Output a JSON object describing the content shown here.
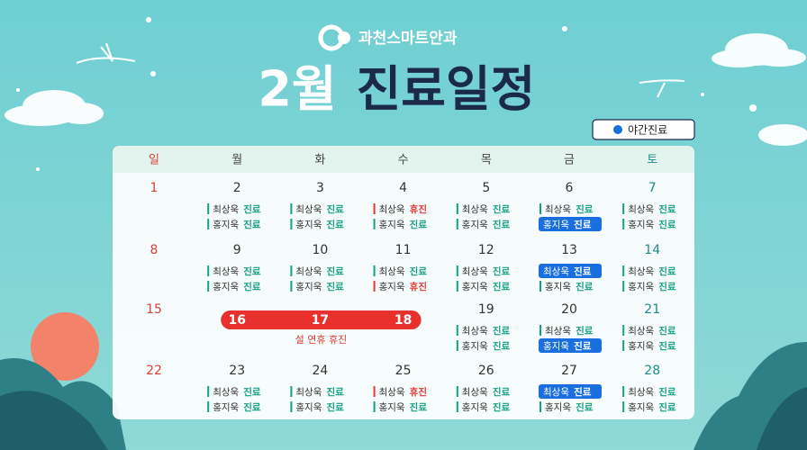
{
  "brand": "과천스마트안과",
  "title": {
    "month": "2월",
    "main": "진료일정"
  },
  "legend": {
    "night": "야간진료"
  },
  "calendar": {
    "weekdays": [
      "일",
      "월",
      "화",
      "수",
      "목",
      "금",
      "토"
    ],
    "holiday_label": "설 연휴 휴진",
    "weeks": [
      {
        "days": [
          {
            "date": 1,
            "entries": []
          },
          {
            "date": 2,
            "entries": [
              {
                "doctor": "최상욱",
                "status": "진료",
                "kind": "normal"
              },
              {
                "doctor": "홍지욱",
                "status": "진료",
                "kind": "normal"
              }
            ]
          },
          {
            "date": 3,
            "entries": [
              {
                "doctor": "최상욱",
                "status": "진료",
                "kind": "normal"
              },
              {
                "doctor": "홍지욱",
                "status": "진료",
                "kind": "normal"
              }
            ]
          },
          {
            "date": 4,
            "entries": [
              {
                "doctor": "최상욱",
                "status": "휴진",
                "kind": "off"
              },
              {
                "doctor": "홍지욱",
                "status": "진료",
                "kind": "normal"
              }
            ]
          },
          {
            "date": 5,
            "entries": [
              {
                "doctor": "최상욱",
                "status": "진료",
                "kind": "normal"
              },
              {
                "doctor": "홍지욱",
                "status": "진료",
                "kind": "normal"
              }
            ]
          },
          {
            "date": 6,
            "entries": [
              {
                "doctor": "최상욱",
                "status": "진료",
                "kind": "normal"
              },
              {
                "doctor": "홍지욱",
                "status": "진료",
                "kind": "night"
              }
            ]
          },
          {
            "date": 7,
            "entries": [
              {
                "doctor": "최상욱",
                "status": "진료",
                "kind": "normal"
              },
              {
                "doctor": "홍지욱",
                "status": "진료",
                "kind": "normal"
              }
            ]
          }
        ]
      },
      {
        "days": [
          {
            "date": 8,
            "entries": []
          },
          {
            "date": 9,
            "entries": [
              {
                "doctor": "최상욱",
                "status": "진료",
                "kind": "normal"
              },
              {
                "doctor": "홍지욱",
                "status": "진료",
                "kind": "normal"
              }
            ]
          },
          {
            "date": 10,
            "entries": [
              {
                "doctor": "최상욱",
                "status": "진료",
                "kind": "normal"
              },
              {
                "doctor": "홍지욱",
                "status": "진료",
                "kind": "normal"
              }
            ]
          },
          {
            "date": 11,
            "entries": [
              {
                "doctor": "최상욱",
                "status": "진료",
                "kind": "normal"
              },
              {
                "doctor": "홍지욱",
                "status": "휴진",
                "kind": "off"
              }
            ]
          },
          {
            "date": 12,
            "entries": [
              {
                "doctor": "최상욱",
                "status": "진료",
                "kind": "normal"
              },
              {
                "doctor": "홍지욱",
                "status": "진료",
                "kind": "normal"
              }
            ]
          },
          {
            "date": 13,
            "entries": [
              {
                "doctor": "최상욱",
                "status": "진료",
                "kind": "night"
              },
              {
                "doctor": "홍지욱",
                "status": "진료",
                "kind": "normal"
              }
            ]
          },
          {
            "date": 14,
            "entries": [
              {
                "doctor": "최상욱",
                "status": "진료",
                "kind": "normal"
              },
              {
                "doctor": "홍지욱",
                "status": "진료",
                "kind": "normal"
              }
            ]
          }
        ]
      },
      {
        "days": [
          {
            "date": 15,
            "entries": []
          },
          {
            "date": 16,
            "holiday": true,
            "entries": []
          },
          {
            "date": 17,
            "holiday": true,
            "entries": []
          },
          {
            "date": 18,
            "holiday": true,
            "entries": []
          },
          {
            "date": 19,
            "entries": [
              {
                "doctor": "최상욱",
                "status": "진료",
                "kind": "normal"
              },
              {
                "doctor": "홍지욱",
                "status": "진료",
                "kind": "normal"
              }
            ]
          },
          {
            "date": 20,
            "entries": [
              {
                "doctor": "최상욱",
                "status": "진료",
                "kind": "normal"
              },
              {
                "doctor": "홍지욱",
                "status": "진료",
                "kind": "night"
              }
            ]
          },
          {
            "date": 21,
            "entries": [
              {
                "doctor": "최상욱",
                "status": "진료",
                "kind": "normal"
              },
              {
                "doctor": "홍지욱",
                "status": "진료",
                "kind": "normal"
              }
            ]
          }
        ]
      },
      {
        "days": [
          {
            "date": 22,
            "entries": []
          },
          {
            "date": 23,
            "entries": [
              {
                "doctor": "최상욱",
                "status": "진료",
                "kind": "normal"
              },
              {
                "doctor": "홍지욱",
                "status": "진료",
                "kind": "normal"
              }
            ]
          },
          {
            "date": 24,
            "entries": [
              {
                "doctor": "최상욱",
                "status": "진료",
                "kind": "normal"
              },
              {
                "doctor": "홍지욱",
                "status": "진료",
                "kind": "normal"
              }
            ]
          },
          {
            "date": 25,
            "entries": [
              {
                "doctor": "최상욱",
                "status": "휴진",
                "kind": "off"
              },
              {
                "doctor": "홍지욱",
                "status": "진료",
                "kind": "normal"
              }
            ]
          },
          {
            "date": 26,
            "entries": [
              {
                "doctor": "최상욱",
                "status": "진료",
                "kind": "normal"
              },
              {
                "doctor": "홍지욱",
                "status": "진료",
                "kind": "normal"
              }
            ]
          },
          {
            "date": 27,
            "entries": [
              {
                "doctor": "최상욱",
                "status": "진료",
                "kind": "night"
              },
              {
                "doctor": "홍지욱",
                "status": "진료",
                "kind": "normal"
              }
            ]
          },
          {
            "date": 28,
            "entries": [
              {
                "doctor": "최상욱",
                "status": "진료",
                "kind": "normal"
              },
              {
                "doctor": "홍지욱",
                "status": "진료",
                "kind": "normal"
              }
            ]
          }
        ]
      }
    ]
  }
}
